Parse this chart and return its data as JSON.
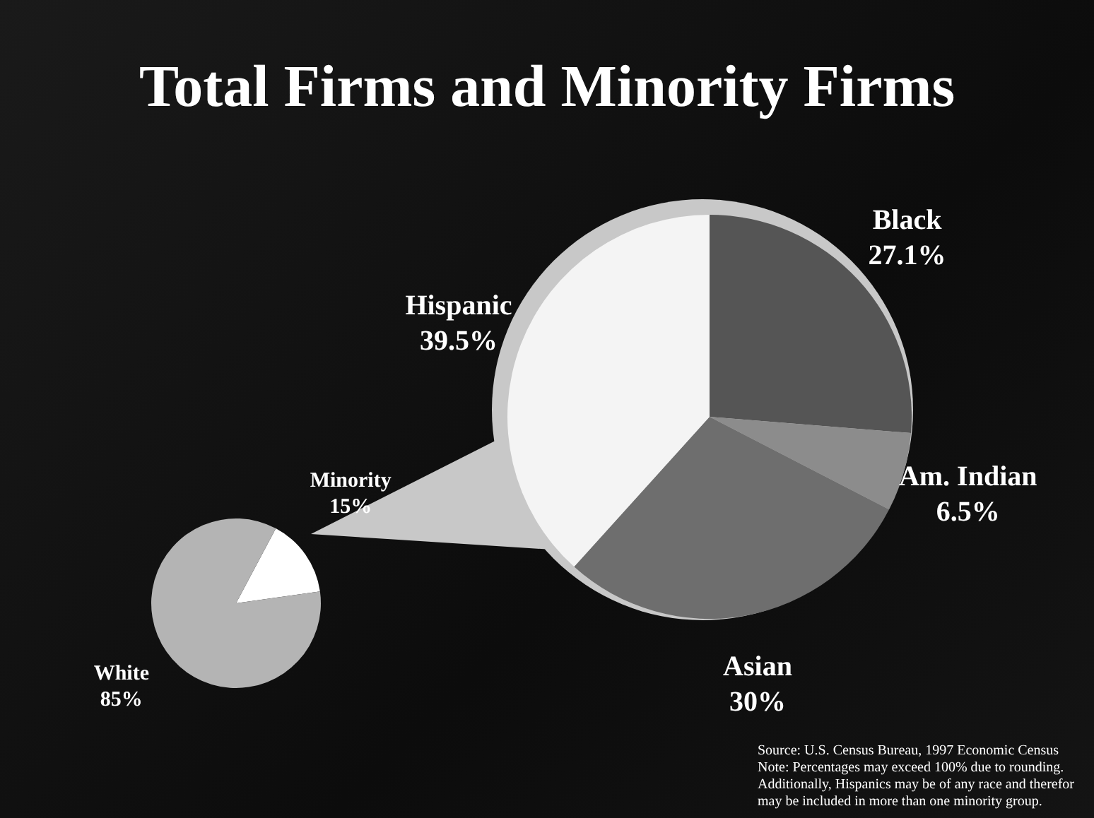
{
  "chart_data": [
    {
      "type": "pie",
      "title": "Total Firms and Minority Firms",
      "categories": [
        "Minority",
        "White"
      ],
      "values": [
        15,
        85
      ],
      "value_labels": [
        "15%",
        "85%"
      ],
      "colors": [
        "#ffffff",
        "#b4b4b4"
      ]
    },
    {
      "type": "pie",
      "categories": [
        "Black",
        "Am. Indian",
        "Asian",
        "Hispanic"
      ],
      "values": [
        27.1,
        6.5,
        30,
        39.5
      ],
      "value_labels": [
        "27.1%",
        "6.5%",
        "30%",
        "39.5%"
      ],
      "colors": [
        "#555555",
        "#8c8c8c",
        "#6e6e6e",
        "#f4f4f4"
      ],
      "annotations": [
        "Source: U.S. Census Bureau, 1997 Economic Census",
        "Note: Percentages may exceed 100% due to rounding.",
        "Additionally, Hispanics may be of any race and therefor may be included in more than one minority group."
      ]
    }
  ]
}
